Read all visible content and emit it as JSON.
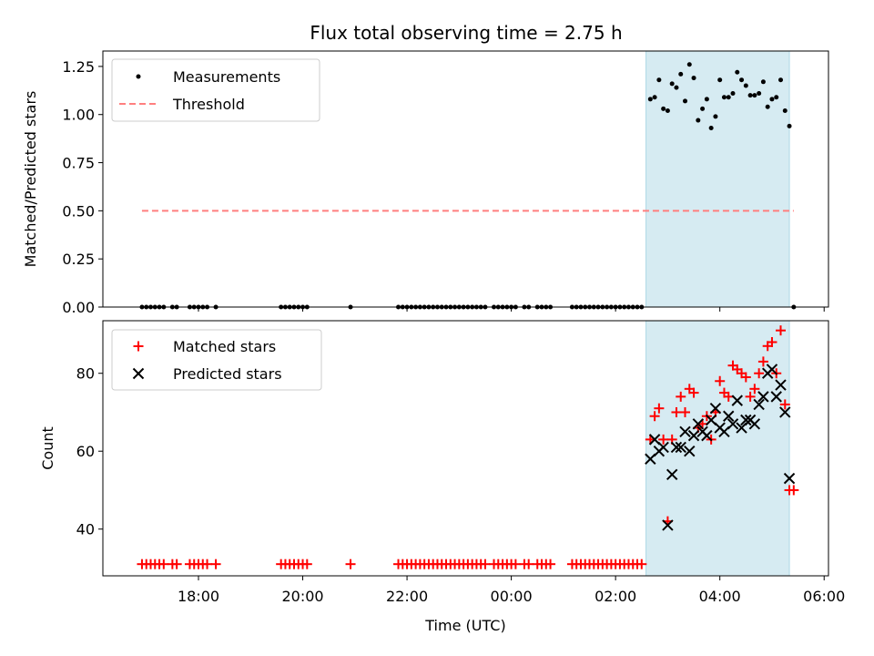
{
  "title": "Flux total observing time = 2.75 h",
  "colors": {
    "measurement": "#000000",
    "threshold": "#ff7f7f",
    "matched": "#ff0000",
    "predicted": "#000000",
    "span": "#add8e6"
  },
  "chart_data": [
    {
      "type": "scatter",
      "ylabel": "Matched/Predicted stars",
      "ylim": [
        0.0,
        1.33
      ],
      "yticks": [
        "0.00",
        "0.25",
        "0.50",
        "0.75",
        "1.00",
        "1.25"
      ],
      "ytick_values": [
        0,
        0.25,
        0.5,
        0.75,
        1.0,
        1.25
      ],
      "legend": {
        "placement": "upper-left",
        "entries": [
          "Measurements",
          "Threshold"
        ]
      },
      "threshold": {
        "value": 0.5,
        "x_range": [
          "16:55",
          "05:25"
        ]
      },
      "shaded_span": [
        "02:35",
        "05:20"
      ],
      "series": [
        {
          "name": "Measurements",
          "x": [
            "16:55",
            "17:00",
            "17:05",
            "17:10",
            "17:15",
            "17:20",
            "17:30",
            "17:35",
            "17:50",
            "17:55",
            "18:00",
            "18:05",
            "18:10",
            "18:20",
            "19:35",
            "19:40",
            "19:45",
            "19:50",
            "19:55",
            "20:00",
            "20:05",
            "20:55",
            "21:50",
            "21:55",
            "22:00",
            "22:05",
            "22:10",
            "22:15",
            "22:20",
            "22:25",
            "22:30",
            "22:35",
            "22:40",
            "22:45",
            "22:50",
            "22:55",
            "23:00",
            "23:05",
            "23:10",
            "23:15",
            "23:20",
            "23:25",
            "23:30",
            "23:40",
            "23:45",
            "23:50",
            "23:55",
            "00:00",
            "00:05",
            "00:15",
            "00:20",
            "00:30",
            "00:35",
            "00:40",
            "00:45",
            "01:10",
            "01:15",
            "01:20",
            "01:25",
            "01:30",
            "01:35",
            "01:40",
            "01:45",
            "01:50",
            "01:55",
            "02:00",
            "02:05",
            "02:10",
            "02:15",
            "02:20",
            "02:25",
            "02:30",
            "02:40",
            "02:45",
            "02:50",
            "02:55",
            "03:00",
            "03:05",
            "03:10",
            "03:15",
            "03:20",
            "03:25",
            "03:30",
            "03:35",
            "03:40",
            "03:45",
            "03:50",
            "03:55",
            "04:00",
            "04:05",
            "04:10",
            "04:15",
            "04:20",
            "04:25",
            "04:30",
            "04:35",
            "04:40",
            "04:45",
            "04:50",
            "04:55",
            "05:00",
            "05:05",
            "05:10",
            "05:15",
            "05:20",
            "05:25"
          ],
          "y": [
            0,
            0,
            0,
            0,
            0,
            0,
            0,
            0,
            0,
            0,
            0,
            0,
            0,
            0,
            0,
            0,
            0,
            0,
            0,
            0,
            0,
            0,
            0,
            0,
            0,
            0,
            0,
            0,
            0,
            0,
            0,
            0,
            0,
            0,
            0,
            0,
            0,
            0,
            0,
            0,
            0,
            0,
            0,
            0,
            0,
            0,
            0,
            0,
            0,
            0,
            0,
            0,
            0,
            0,
            0,
            0,
            0,
            0,
            0,
            0,
            0,
            0,
            0,
            0,
            0,
            0,
            0,
            0,
            0,
            0,
            0,
            0,
            1.08,
            1.09,
            1.18,
            1.03,
            1.02,
            1.16,
            1.14,
            1.21,
            1.07,
            1.26,
            1.19,
            0.97,
            1.03,
            1.08,
            0.93,
            0.99,
            1.18,
            1.09,
            1.09,
            1.11,
            1.22,
            1.18,
            1.15,
            1.1,
            1.1,
            1.11,
            1.17,
            1.04,
            1.08,
            1.09,
            1.18,
            1.02,
            0.94,
            0.0
          ]
        }
      ]
    },
    {
      "type": "scatter",
      "xlabel": "Time (UTC)",
      "ylabel": "Count",
      "ylim": [
        28,
        93.5
      ],
      "yticks": [
        "40",
        "60",
        "80"
      ],
      "ytick_values": [
        40,
        60,
        80
      ],
      "xticks": [
        "18:00",
        "20:00",
        "22:00",
        "00:00",
        "02:00",
        "04:00",
        "06:00"
      ],
      "xtick_values": [
        "18:00",
        "20:00",
        "22:00",
        "00:00",
        "02:00",
        "04:00",
        "06:00"
      ],
      "xlim": [
        "16:10",
        "06:05"
      ],
      "legend": {
        "placement": "upper-left",
        "entries": [
          "Matched stars",
          "Predicted stars"
        ]
      },
      "shaded_span": [
        "02:35",
        "05:20"
      ],
      "series": [
        {
          "name": "Matched stars",
          "x": [
            "16:55",
            "17:00",
            "17:05",
            "17:10",
            "17:15",
            "17:20",
            "17:30",
            "17:35",
            "17:50",
            "17:55",
            "18:00",
            "18:05",
            "18:10",
            "18:20",
            "19:35",
            "19:40",
            "19:45",
            "19:50",
            "19:55",
            "20:00",
            "20:05",
            "20:55",
            "21:50",
            "21:55",
            "22:00",
            "22:05",
            "22:10",
            "22:15",
            "22:20",
            "22:25",
            "22:30",
            "22:35",
            "22:40",
            "22:45",
            "22:50",
            "22:55",
            "23:00",
            "23:05",
            "23:10",
            "23:15",
            "23:20",
            "23:25",
            "23:30",
            "23:40",
            "23:45",
            "23:50",
            "23:55",
            "00:00",
            "00:05",
            "00:15",
            "00:20",
            "00:30",
            "00:35",
            "00:40",
            "00:45",
            "01:10",
            "01:15",
            "01:20",
            "01:25",
            "01:30",
            "01:35",
            "01:40",
            "01:45",
            "01:50",
            "01:55",
            "02:00",
            "02:05",
            "02:10",
            "02:15",
            "02:20",
            "02:25",
            "02:30",
            "02:40",
            "02:45",
            "02:50",
            "02:55",
            "03:00",
            "03:05",
            "03:10",
            "03:15",
            "03:20",
            "03:25",
            "03:30",
            "03:35",
            "03:40",
            "03:45",
            "03:50",
            "03:55",
            "04:00",
            "04:05",
            "04:10",
            "04:15",
            "04:20",
            "04:25",
            "04:30",
            "04:35",
            "04:40",
            "04:45",
            "04:50",
            "04:55",
            "05:00",
            "05:05",
            "05:10",
            "05:15",
            "05:20",
            "05:25"
          ],
          "y": [
            31,
            31,
            31,
            31,
            31,
            31,
            31,
            31,
            31,
            31,
            31,
            31,
            31,
            31,
            31,
            31,
            31,
            31,
            31,
            31,
            31,
            31,
            31,
            31,
            31,
            31,
            31,
            31,
            31,
            31,
            31,
            31,
            31,
            31,
            31,
            31,
            31,
            31,
            31,
            31,
            31,
            31,
            31,
            31,
            31,
            31,
            31,
            31,
            31,
            31,
            31,
            31,
            31,
            31,
            31,
            31,
            31,
            31,
            31,
            31,
            31,
            31,
            31,
            31,
            31,
            31,
            31,
            31,
            31,
            31,
            31,
            31,
            63,
            69,
            71,
            63,
            42,
            63,
            70,
            74,
            70,
            76,
            75,
            66,
            67,
            69,
            63,
            70,
            78,
            75,
            74,
            82,
            81,
            80,
            79,
            74,
            76,
            80,
            83,
            87,
            88,
            80,
            91,
            72,
            50,
            50
          ]
        },
        {
          "name": "Predicted stars",
          "x": [
            "02:40",
            "02:45",
            "02:50",
            "02:55",
            "03:00",
            "03:05",
            "03:10",
            "03:15",
            "03:20",
            "03:25",
            "03:30",
            "03:35",
            "03:40",
            "03:45",
            "03:50",
            "03:55",
            "04:00",
            "04:05",
            "04:10",
            "04:15",
            "04:20",
            "04:25",
            "04:30",
            "04:35",
            "04:40",
            "04:45",
            "04:50",
            "04:55",
            "05:00",
            "05:05",
            "05:10",
            "05:15",
            "05:20"
          ],
          "y": [
            58,
            63,
            60,
            61,
            41,
            54,
            61,
            61,
            65,
            60,
            64,
            67,
            65,
            64,
            68,
            71,
            66,
            65,
            69,
            67,
            73,
            66,
            68,
            68,
            67,
            72,
            74,
            80,
            81,
            74,
            77,
            70,
            53
          ]
        }
      ]
    }
  ]
}
